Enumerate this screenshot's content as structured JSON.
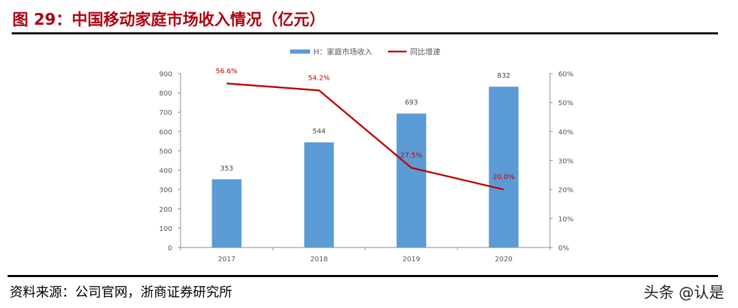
{
  "header": {
    "title": "图 29：中国移动家庭市场收入情况（亿元）"
  },
  "footer": {
    "source": "资料来源：公司官网，浙商证券研究所",
    "watermark": "头条 @认是"
  },
  "chart_data": {
    "type": "bar+line",
    "categories": [
      "2017",
      "2018",
      "2019",
      "2020"
    ],
    "series": [
      {
        "name": "H：家庭市场收入",
        "type": "bar",
        "axis": "left",
        "values": [
          353,
          544,
          693,
          832
        ],
        "labels": [
          "353",
          "544",
          "693",
          "832"
        ],
        "color": "#5b9bd5"
      },
      {
        "name": "同比增速",
        "type": "line",
        "axis": "right",
        "values": [
          56.6,
          54.2,
          27.5,
          20.0
        ],
        "labels": [
          "56.6%",
          "54.2%",
          "27.5%",
          "20.0%"
        ],
        "color": "#c00000"
      }
    ],
    "y_left": {
      "range": [
        0,
        900
      ],
      "ticks": [
        "0",
        "100",
        "200",
        "300",
        "400",
        "500",
        "600",
        "700",
        "800",
        "900"
      ]
    },
    "y_right": {
      "range": [
        0,
        60
      ],
      "ticks": [
        "0%",
        "10%",
        "20%",
        "30%",
        "40%",
        "50%",
        "60%"
      ]
    },
    "grid": false,
    "legend": "top-right"
  }
}
